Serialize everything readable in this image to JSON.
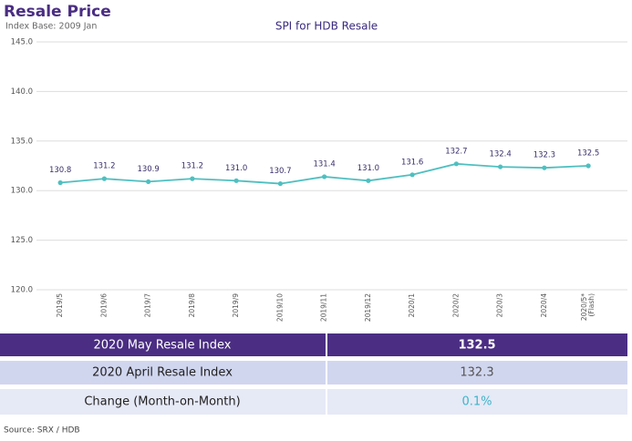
{
  "header": {
    "title": "Resale Price",
    "subtitle": "Index Base: 2009 Jan"
  },
  "chart_data": {
    "type": "line",
    "title": "SPI for HDB Resale",
    "categories": [
      "2019/5",
      "2019/6",
      "2019/7",
      "2019/8",
      "2019/9",
      "2019/10",
      "2019/11",
      "2019/12",
      "2020/1",
      "2020/2",
      "2020/3",
      "2020/4",
      "2020/5*\n(Flash)"
    ],
    "series": [
      {
        "name": "SPI",
        "color": "#4fbfc0",
        "values": [
          130.8,
          131.2,
          130.9,
          131.2,
          131.0,
          130.7,
          131.4,
          131.0,
          131.6,
          132.7,
          132.4,
          132.3,
          132.5
        ],
        "value_labels": [
          "130.8",
          "131.2",
          "130.9",
          "131.2",
          "131.0",
          "130.7",
          "131.4",
          "131.0",
          "131.6",
          "132.7",
          "132.4",
          "132.3",
          "132.5"
        ]
      }
    ],
    "ylim": [
      120,
      145
    ],
    "yticks": [
      {
        "value": 120,
        "label": "120.0"
      },
      {
        "value": 125,
        "label": "125.0"
      },
      {
        "value": 130,
        "label": "130.0"
      },
      {
        "value": 135,
        "label": "135.0"
      },
      {
        "value": 140,
        "label": "140.0"
      },
      {
        "value": 145,
        "label": "145.0"
      }
    ],
    "grid": true
  },
  "table": {
    "rows": [
      [
        "2020 May Resale Index",
        "132.5"
      ],
      [
        "2020 April Resale Index",
        "132.3"
      ],
      [
        "Change (Month-on-Month)",
        "0.1%"
      ]
    ]
  },
  "source": "Source: SRX / HDB"
}
